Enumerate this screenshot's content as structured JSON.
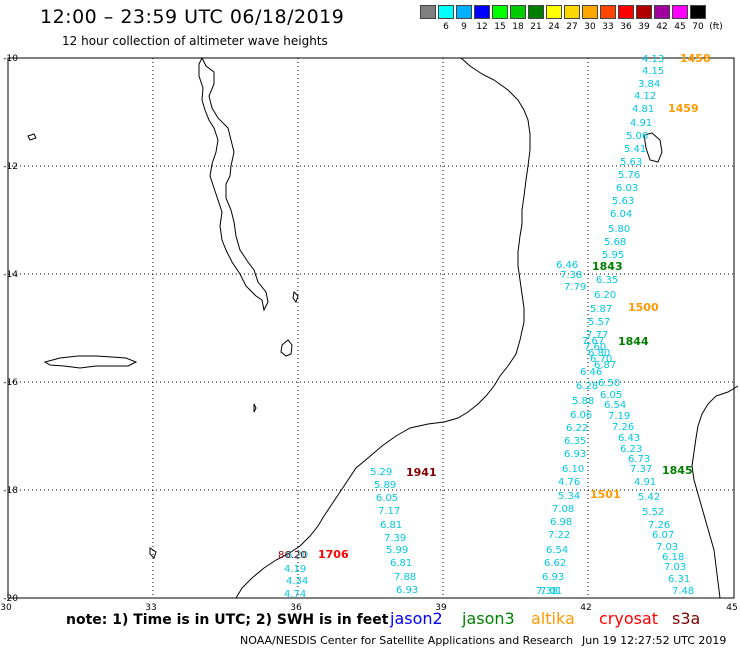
{
  "header": {
    "title": "12:00 – 23:59 UTC 06/18/2019",
    "subtitle": "12 hour collection of altimeter wave heights"
  },
  "legend": {
    "unit": "(ft)",
    "bins": [
      {
        "color": "#808080",
        "label": "3"
      },
      {
        "color": "#00ffff",
        "label": "6"
      },
      {
        "color": "#00b0ff",
        "label": "9"
      },
      {
        "color": "#0000ff",
        "label": "12"
      },
      {
        "color": "#00ff00",
        "label": "15"
      },
      {
        "color": "#00cc00",
        "label": "18"
      },
      {
        "color": "#008000",
        "label": "21"
      },
      {
        "color": "#ffff00",
        "label": "24"
      },
      {
        "color": "#ffd700",
        "label": "27"
      },
      {
        "color": "#ffa500",
        "label": "30"
      },
      {
        "color": "#ff4500",
        "label": "33"
      },
      {
        "color": "#ff0000",
        "label": "36"
      },
      {
        "color": "#b00000",
        "label": "39"
      },
      {
        "color": "#a000a0",
        "label": "42"
      },
      {
        "color": "#ff00ff",
        "label": "45"
      },
      {
        "color": "#000000",
        "label": "70"
      }
    ]
  },
  "axes": {
    "lon_ticks": [
      "30",
      "33",
      "36",
      "39",
      "42",
      "45"
    ],
    "lat_ticks": [
      "-10",
      "-12",
      "-14",
      "-16",
      "-18",
      "-20"
    ]
  },
  "colors": {
    "wave": "#00c8e0",
    "jason2": "#0000ff",
    "jason3": "#008000",
    "altika": "#ff9900",
    "cryosat": "#ff0000",
    "s3a": "#800000"
  },
  "tracks": [
    {
      "time": "1458",
      "sat": "altika",
      "values": [
        "4.13",
        "4.15",
        "3.84",
        "4.12",
        "4.81",
        "4.91",
        "5.06",
        "5.41",
        "5.63"
      ]
    },
    {
      "time": "1459",
      "sat": "altika",
      "values": [
        "5.76",
        "6.03",
        "5.63",
        "6.04",
        "5.80",
        "5.68",
        "5.95"
      ]
    },
    {
      "time": "1843",
      "sat": "jason3",
      "values": [
        "6.46",
        "7.38",
        "7.79"
      ]
    },
    {
      "time": "1500",
      "sat": "altika",
      "values": [
        "6.35",
        "6.20",
        "5.87",
        "5.57",
        "7.77",
        "7.67",
        "7.60",
        "6.80",
        "6.70",
        "6.87",
        "6.46",
        "6.50",
        "6.28",
        "6.05",
        "5.88",
        "6.54",
        "6.06",
        "7.19",
        "6.22",
        "7.26",
        "6.35",
        "6.43",
        "6.93",
        "6.23",
        "6.10",
        "6.73",
        "4.76",
        "7.37",
        "5.34",
        "4.91",
        "7.08",
        "5.42",
        "6.98",
        "5.52",
        "7.22",
        "7.26",
        "6.54",
        "6.07",
        "6.62",
        "7.03",
        "6.93",
        "6.18",
        "7.01",
        "7.03",
        "7.38",
        "6.31",
        "7.48"
      ]
    },
    {
      "time": "1844",
      "sat": "jason3"
    },
    {
      "time": "1845",
      "sat": "jason3"
    },
    {
      "time": "1501",
      "sat": "altika"
    },
    {
      "time": "1941",
      "sat": "s3a",
      "values": [
        "5.29",
        "5.89",
        "6.05",
        "7.17",
        "6.81",
        "7.39",
        "5.99",
        "6.81",
        "7.88",
        "6.93"
      ]
    },
    {
      "time": "1706",
      "sat": "cryosat",
      "values": [
        "6.20",
        "4.19",
        "4.34",
        "4.74"
      ]
    }
  ],
  "overlap_label": "86.20",
  "footer": {
    "note": "note: 1) Time is in UTC; 2) SWH is in feet",
    "sats": [
      "jason2",
      "jason3",
      "altika",
      "cryosat",
      "s3a"
    ],
    "credit": "NOAA/NESDIS Center for Satellite Applications and Research",
    "timestamp": "Jun 19 12:27:52 UTC 2019"
  }
}
